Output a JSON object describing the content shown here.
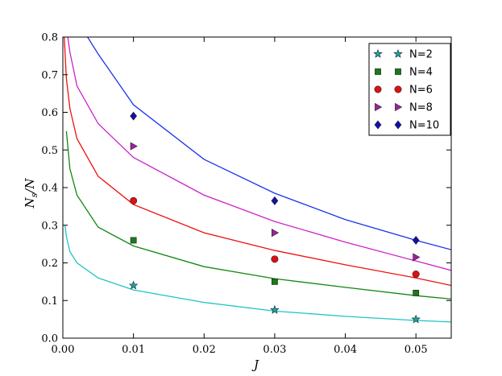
{
  "chart_data": {
    "type": "scatter",
    "title": "",
    "xlabel": "J",
    "ylabel": "N_s/N",
    "ylabel_parts": {
      "main": "N",
      "sub": "s",
      "rest": "/N"
    },
    "xlim": [
      0.0,
      0.055
    ],
    "ylim": [
      0.0,
      0.8
    ],
    "xticks": [
      "0.00",
      "0.01",
      "0.02",
      "0.03",
      "0.04",
      "0.05"
    ],
    "yticks": [
      "0.0",
      "0.1",
      "0.2",
      "0.3",
      "0.4",
      "0.5",
      "0.6",
      "0.7",
      "0.8"
    ],
    "grid": false,
    "legend_position": "top-right",
    "x": [
      0.01,
      0.03,
      0.05
    ],
    "series": [
      {
        "name": "N=2",
        "marker": "star",
        "color": "#17a6a6",
        "values": [
          0.14,
          0.075,
          0.05
        ],
        "fit_curve": {
          "color": "#1fc4c4",
          "x": [
            0.0003,
            0.0005,
            0.001,
            0.002,
            0.005,
            0.01,
            0.02,
            0.03,
            0.04,
            0.05,
            0.055
          ],
          "y": [
            0.3,
            0.27,
            0.23,
            0.2,
            0.16,
            0.128,
            0.095,
            0.072,
            0.058,
            0.047,
            0.043
          ]
        }
      },
      {
        "name": "N=4",
        "marker": "square",
        "color": "#1a7a1a",
        "values": [
          0.26,
          0.15,
          0.12
        ],
        "fit_curve": {
          "color": "#118811",
          "x": [
            0.0005,
            0.001,
            0.002,
            0.005,
            0.01,
            0.02,
            0.03,
            0.04,
            0.05,
            0.055
          ],
          "y": [
            0.55,
            0.45,
            0.38,
            0.295,
            0.245,
            0.19,
            0.158,
            0.135,
            0.113,
            0.104
          ]
        }
      },
      {
        "name": "N=6",
        "marker": "circle",
        "color": "#e01010",
        "values": [
          0.365,
          0.21,
          0.17
        ],
        "fit_curve": {
          "color": "#ee1111",
          "x": [
            0.0002,
            0.0005,
            0.001,
            0.002,
            0.005,
            0.01,
            0.02,
            0.03,
            0.04,
            0.05,
            0.055
          ],
          "y": [
            0.8,
            0.69,
            0.61,
            0.53,
            0.43,
            0.355,
            0.28,
            0.233,
            0.195,
            0.16,
            0.14
          ]
        }
      },
      {
        "name": "N=8",
        "marker": "triangle-right",
        "color": "#a020a0",
        "values": [
          0.51,
          0.28,
          0.215
        ],
        "fit_curve": {
          "color": "#cc22cc",
          "x": [
            0.0007,
            0.001,
            0.002,
            0.005,
            0.01,
            0.02,
            0.03,
            0.04,
            0.05,
            0.055
          ],
          "y": [
            0.8,
            0.76,
            0.67,
            0.57,
            0.48,
            0.38,
            0.31,
            0.255,
            0.205,
            0.18
          ]
        }
      },
      {
        "name": "N=10",
        "marker": "diamond",
        "color": "#1010b0",
        "values": [
          0.59,
          0.365,
          0.26
        ],
        "fit_curve": {
          "color": "#1a33ee",
          "x": [
            0.0035,
            0.005,
            0.01,
            0.02,
            0.03,
            0.04,
            0.05,
            0.055
          ],
          "y": [
            0.8,
            0.755,
            0.62,
            0.475,
            0.385,
            0.315,
            0.26,
            0.235
          ]
        }
      }
    ]
  }
}
